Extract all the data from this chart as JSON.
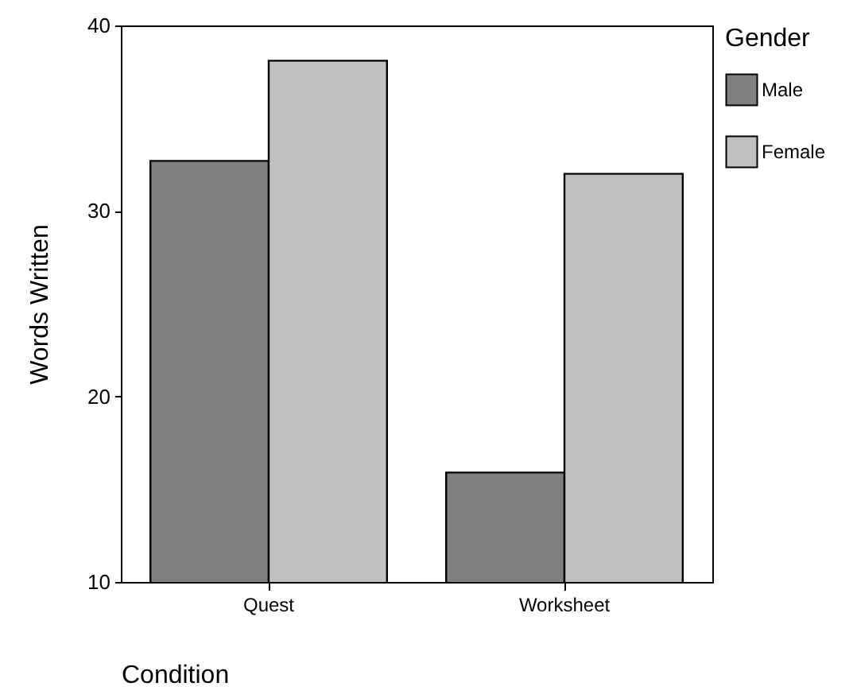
{
  "chart_data": {
    "type": "bar",
    "xlabel": "Condition",
    "ylabel": "Words Written",
    "legend_title": "Gender",
    "categories": [
      "Quest",
      "Worksheet"
    ],
    "series": [
      {
        "name": "Male",
        "color": "#808080",
        "values": [
          32.7,
          15.9
        ]
      },
      {
        "name": "Female",
        "color": "#c0c0c0",
        "values": [
          38.1,
          32.0
        ]
      }
    ],
    "ylim": [
      10,
      40
    ],
    "yticks": [
      10,
      20,
      30,
      40
    ],
    "grid": false,
    "legend": "right"
  }
}
